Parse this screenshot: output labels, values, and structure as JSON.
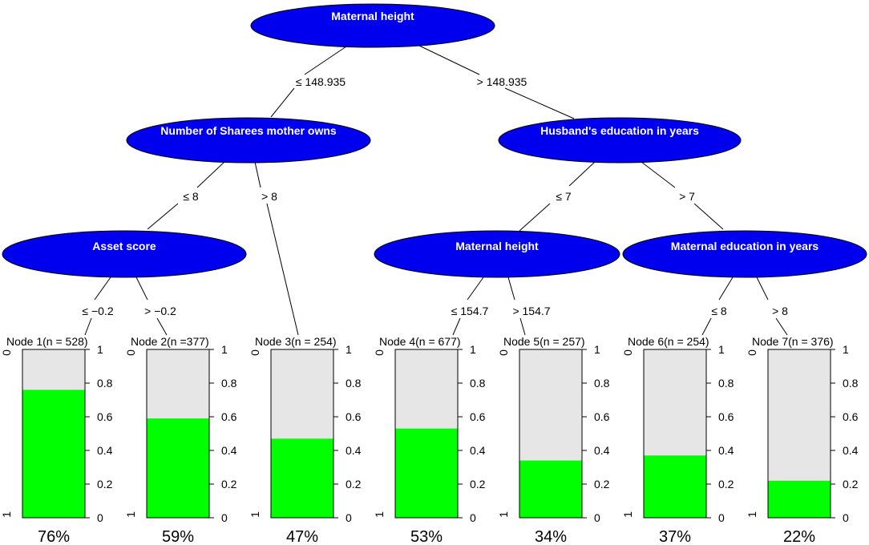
{
  "tree": {
    "root": {
      "label": "Maternal height",
      "left_edge": "≤ 148.935",
      "right_edge": "> 148.935"
    },
    "left": {
      "label": "Number of Sharees mother owns",
      "left_edge": "≤ 8",
      "right_edge": "> 8"
    },
    "right": {
      "label": "Husband's education in years",
      "left_edge": "≤ 7",
      "right_edge": "> 7"
    },
    "left_left": {
      "label": "Asset score",
      "left_edge": "≤ −0.2",
      "right_edge": "> −0.2"
    },
    "right_left": {
      "label": "Maternal height",
      "left_edge": "≤ 154.7",
      "right_edge": "> 154.7"
    },
    "right_right": {
      "label": "Maternal education in years",
      "left_edge": "≤ 8",
      "right_edge": "> 8"
    }
  },
  "leaves": [
    {
      "title": "Node 1(n = 528)",
      "value": 0.76,
      "percent": "76%"
    },
    {
      "title": "Node 2(n =377)",
      "value": 0.59,
      "percent": "59%"
    },
    {
      "title": "Node 3(n = 254)",
      "value": 0.47,
      "percent": "47%"
    },
    {
      "title": "Node 4(n = 677)",
      "value": 0.53,
      "percent": "53%"
    },
    {
      "title": "Node 5(n = 257)",
      "value": 0.34,
      "percent": "34%"
    },
    {
      "title": "Node 6(n = 254)",
      "value": 0.37,
      "percent": "37%"
    },
    {
      "title": "Node 7(n = 376)",
      "value": 0.22,
      "percent": "22%"
    }
  ],
  "axis": {
    "ticks": [
      "0",
      "0.2",
      "0.4",
      "0.6",
      "0.8",
      "1"
    ],
    "left_top": "0",
    "left_bottom": "1"
  },
  "colors": {
    "node_fill": "#0000ee",
    "bar_fill": "#00ff00",
    "bar_background": "#e6e6e6"
  }
}
